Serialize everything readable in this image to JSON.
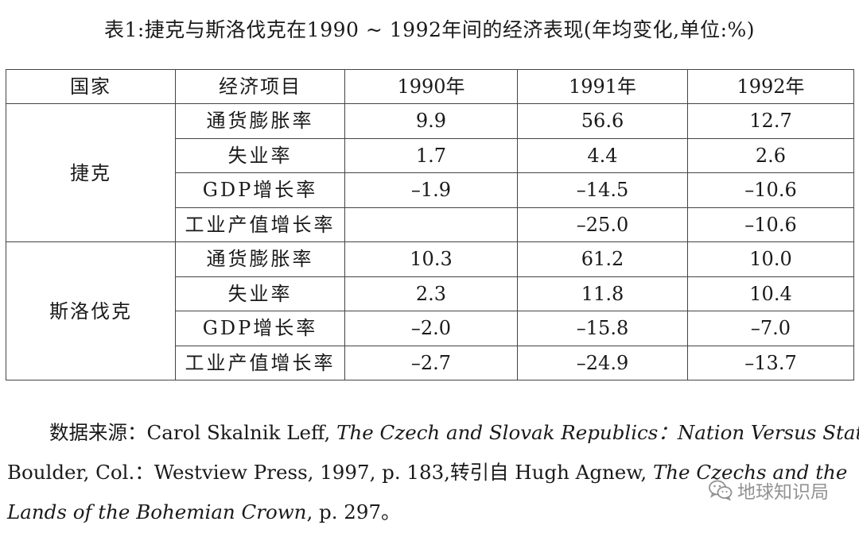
{
  "title": "表1:捷克与斯洛伐克在1990 ~ 1992年间的经济表现(年均变化,单位:%)",
  "table": {
    "headers": [
      "国家",
      "经济项目",
      "1990年",
      "1991年",
      "1992年"
    ],
    "groups": [
      {
        "country": "捷克",
        "rows": [
          {
            "item": "通货膨胀率",
            "y1990": "9.9",
            "y1991": "56.6",
            "y1992": "12.7"
          },
          {
            "item": "失业率",
            "y1990": "1.7",
            "y1991": "4.4",
            "y1992": "2.6"
          },
          {
            "item": "GDP增长率",
            "y1990": "–1.9",
            "y1991": "–14.5",
            "y1992": "–10.6"
          },
          {
            "item": "工业产值增长率",
            "y1990": "",
            "y1991": "–25.0",
            "y1992": "–10.6"
          }
        ]
      },
      {
        "country": "斯洛伐克",
        "rows": [
          {
            "item": "通货膨胀率",
            "y1990": "10.3",
            "y1991": "61.2",
            "y1992": "10.0"
          },
          {
            "item": "失业率",
            "y1990": "2.3",
            "y1991": "11.8",
            "y1992": "10.4"
          },
          {
            "item": "GDP增长率",
            "y1990": "–2.0",
            "y1991": "–15.8",
            "y1992": "–7.0"
          },
          {
            "item": "工业产值增长率",
            "y1990": "–2.7",
            "y1991": "–24.9",
            "y1992": "–13.7"
          }
        ]
      }
    ]
  },
  "source": {
    "label": "数据来源：",
    "author1": "Carol Skalnik Leff, ",
    "book1": "The Czech and Slovak Republics：Nation Versus State",
    "sep1": ",",
    "line2_text": "Boulder, Col.：Westview Press, 1997, p. 183,转引自 Hugh Agnew, ",
    "book2_part1": "The Czechs and the",
    "book2_part2": "Lands of the Bohemian Crown",
    "line3_tail": ", p. 297。"
  },
  "watermark": {
    "text": "地球知识局",
    "icon": "wechat-icon"
  }
}
